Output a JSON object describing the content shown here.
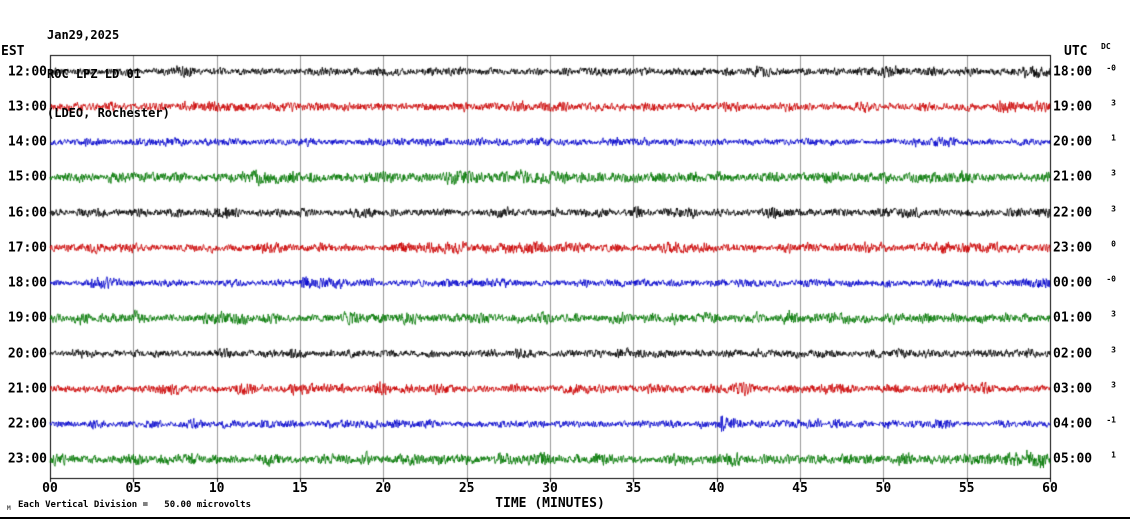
{
  "header": {
    "date": "Jan29,2025",
    "station": "ROC LPZ LD 01",
    "network": "(LDEO, Rochester)"
  },
  "axes": {
    "left_label": "EST",
    "right_label": "UTC",
    "dc_label": "DC",
    "xlabel": "TIME (MINUTES)"
  },
  "footer": {
    "scale_note": "Each Vertical Division =   50.00 microvolts",
    "prefix_mark": "M"
  },
  "chart_data": {
    "type": "line",
    "title": "ROC LPZ LD 01 (LDEO, Rochester) helicorder Jan29,2025",
    "xlabel": "TIME (MINUTES)",
    "x_range_minutes": [
      0,
      60
    ],
    "minutes_per_row": 60,
    "grid": true,
    "grid_color": "#999999",
    "frame_color": "#000000",
    "x_ticks": [
      "00",
      "05",
      "10",
      "15",
      "20",
      "25",
      "30",
      "35",
      "40",
      "45",
      "50",
      "55",
      "60"
    ],
    "colors_cycle": [
      "#000000",
      "#cc0000",
      "#0000cc",
      "#007700"
    ],
    "rows": [
      {
        "est": "12:00",
        "utc": "18:00",
        "color": "#000000",
        "dc": "-0",
        "amp": 0.95
      },
      {
        "est": "13:00",
        "utc": "19:00",
        "color": "#cc0000",
        "dc": "3",
        "amp": 1.05
      },
      {
        "est": "14:00",
        "utc": "20:00",
        "color": "#0000cc",
        "dc": "1",
        "amp": 0.85
      },
      {
        "est": "15:00",
        "utc": "21:00",
        "color": "#007700",
        "dc": "3",
        "amp": 1.25
      },
      {
        "est": "16:00",
        "utc": "22:00",
        "color": "#000000",
        "dc": "3",
        "amp": 1.0
      },
      {
        "est": "17:00",
        "utc": "23:00",
        "color": "#cc0000",
        "dc": "0",
        "amp": 1.05
      },
      {
        "est": "18:00",
        "utc": "00:00",
        "color": "#0000cc",
        "dc": "-0",
        "amp": 0.9
      },
      {
        "est": "19:00",
        "utc": "01:00",
        "color": "#007700",
        "dc": "3",
        "amp": 1.2
      },
      {
        "est": "20:00",
        "utc": "02:00",
        "color": "#000000",
        "dc": "3",
        "amp": 0.95
      },
      {
        "est": "21:00",
        "utc": "03:00",
        "color": "#cc0000",
        "dc": "3",
        "amp": 1.05
      },
      {
        "est": "22:00",
        "utc": "04:00",
        "color": "#0000cc",
        "dc": "-1",
        "amp": 0.9
      },
      {
        "est": "23:00",
        "utc": "05:00",
        "color": "#007700",
        "dc": "1",
        "amp": 1.25
      }
    ],
    "events": [
      {
        "row": 10,
        "minute": 40.4,
        "sigma": 0.1,
        "amp": 13
      },
      {
        "row": 10,
        "minute": 40.9,
        "sigma": 0.8,
        "amp": 4
      },
      {
        "row": 11,
        "minute": 59.2,
        "sigma": 0.6,
        "amp": 7
      },
      {
        "row": 11,
        "minute": 23.3,
        "sigma": 0.4,
        "amp": 4
      },
      {
        "row": 0,
        "minute": 59.0,
        "sigma": 0.8,
        "amp": 4
      },
      {
        "row": 7,
        "minute": 44.5,
        "sigma": 0.3,
        "amp": 4
      }
    ]
  }
}
